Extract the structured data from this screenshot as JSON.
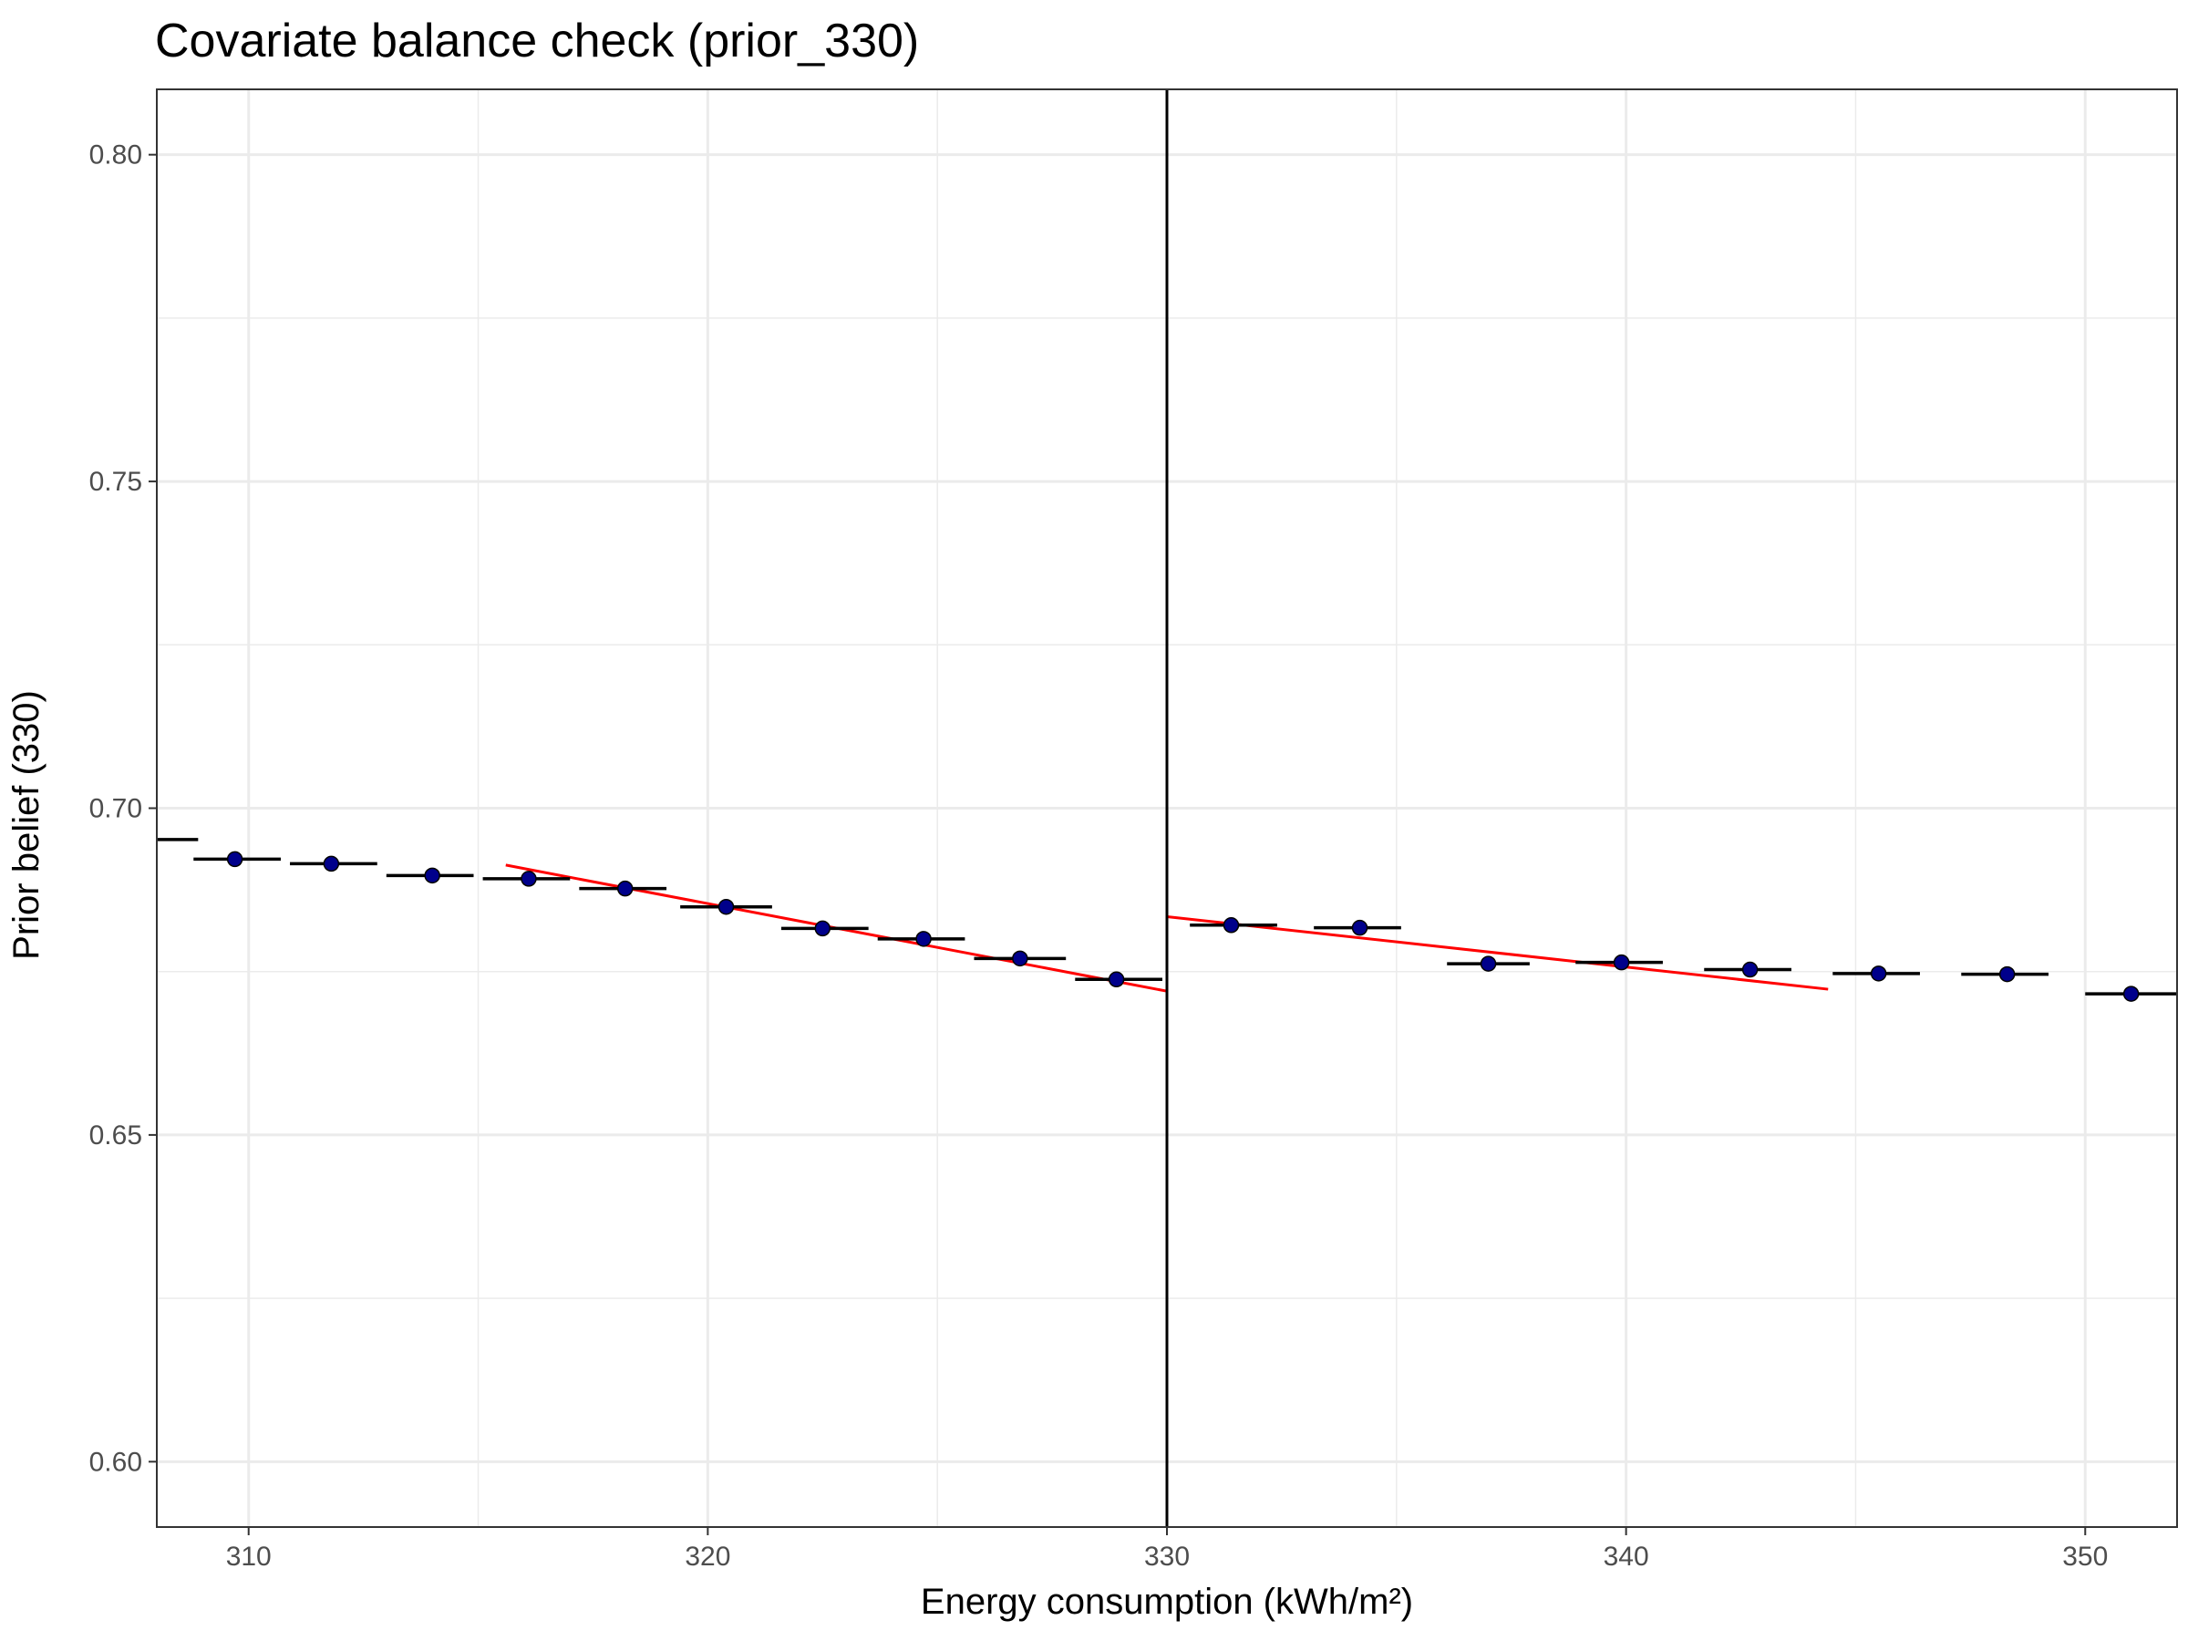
{
  "chart_data": {
    "type": "scatter",
    "title": "Covariate balance check (prior_330)",
    "xlabel": "Energy consumption (kWh/m²)",
    "ylabel": "Prior belief (330)",
    "xlim": [
      308,
      352
    ],
    "ylim": [
      0.59,
      0.81
    ],
    "x_ticks": [
      310,
      320,
      330,
      340,
      350
    ],
    "x_tick_labels": [
      "310",
      "320",
      "330",
      "340",
      "350"
    ],
    "y_ticks": [
      0.6,
      0.65,
      0.7,
      0.75,
      0.8
    ],
    "y_tick_labels": [
      "0.60",
      "0.65",
      "0.70",
      "0.75",
      "0.80"
    ],
    "grid": true,
    "cutoff": 330,
    "colors": {
      "points": "#00008b",
      "fit_line": "#ff0000",
      "bin_segments": "#000000",
      "cutoff_line": "#000000",
      "grid": "#ebebeb",
      "panel_border": "#333333"
    },
    "binned_points": [
      {
        "x": 309.7,
        "y": 0.6922
      },
      {
        "x": 311.8,
        "y": 0.6915
      },
      {
        "x": 314.0,
        "y": 0.6897
      },
      {
        "x": 316.1,
        "y": 0.6892
      },
      {
        "x": 318.2,
        "y": 0.6877
      },
      {
        "x": 320.4,
        "y": 0.6849
      },
      {
        "x": 322.5,
        "y": 0.6816
      },
      {
        "x": 324.7,
        "y": 0.68
      },
      {
        "x": 326.8,
        "y": 0.677
      },
      {
        "x": 328.9,
        "y": 0.6738
      },
      {
        "x": 331.4,
        "y": 0.6821
      },
      {
        "x": 334.2,
        "y": 0.6817
      },
      {
        "x": 337.0,
        "y": 0.6762
      },
      {
        "x": 339.9,
        "y": 0.6764
      },
      {
        "x": 342.7,
        "y": 0.6753
      },
      {
        "x": 345.5,
        "y": 0.6747
      },
      {
        "x": 348.3,
        "y": 0.6746
      },
      {
        "x": 351.0,
        "y": 0.6716
      }
    ],
    "bin_segments": [
      {
        "x0": 307.9,
        "x1": 308.9,
        "y": 0.6952
      },
      {
        "x0": 308.8,
        "x1": 310.7,
        "y": 0.6922
      },
      {
        "x0": 310.9,
        "x1": 312.8,
        "y": 0.6915
      },
      {
        "x0": 313.0,
        "x1": 314.9,
        "y": 0.6897
      },
      {
        "x0": 315.1,
        "x1": 317.0,
        "y": 0.6892
      },
      {
        "x0": 317.2,
        "x1": 319.1,
        "y": 0.6877
      },
      {
        "x0": 319.4,
        "x1": 321.4,
        "y": 0.6849
      },
      {
        "x0": 321.6,
        "x1": 323.5,
        "y": 0.6816
      },
      {
        "x0": 323.7,
        "x1": 325.6,
        "y": 0.68
      },
      {
        "x0": 325.8,
        "x1": 327.8,
        "y": 0.677
      },
      {
        "x0": 328.0,
        "x1": 329.9,
        "y": 0.6738
      },
      {
        "x0": 330.5,
        "x1": 332.4,
        "y": 0.6821
      },
      {
        "x0": 333.2,
        "x1": 335.1,
        "y": 0.6817
      },
      {
        "x0": 336.1,
        "x1": 337.9,
        "y": 0.6762
      },
      {
        "x0": 338.9,
        "x1": 340.8,
        "y": 0.6764
      },
      {
        "x0": 341.7,
        "x1": 343.6,
        "y": 0.6753
      },
      {
        "x0": 344.5,
        "x1": 346.4,
        "y": 0.6747
      },
      {
        "x0": 347.3,
        "x1": 349.2,
        "y": 0.6746
      },
      {
        "x0": 350.0,
        "x1": 352.0,
        "y": 0.6716
      }
    ],
    "fit_lines": [
      {
        "side": "left",
        "x0": 315.6,
        "y0": 0.6913,
        "x1": 330.0,
        "y1": 0.672
      },
      {
        "side": "right",
        "x0": 330.0,
        "y0": 0.6834,
        "x1": 344.4,
        "y1": 0.6723
      }
    ]
  }
}
